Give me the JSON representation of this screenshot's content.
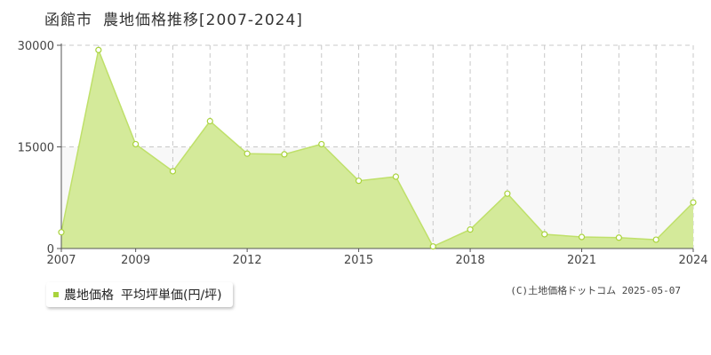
{
  "header": {
    "city": "函館市",
    "title": "農地価格推移[2007-2024]"
  },
  "legend": {
    "series_name": "農地価格",
    "metric": "平均坪単価(円/坪)"
  },
  "credit": "(C)土地価格ドットコム 2025-05-07",
  "colors": {
    "fill": "#d4ea9a",
    "line": "#bfe06a",
    "marker": "#a9d33c",
    "grid": "#c8c8c8",
    "band": "#f8f8f8"
  },
  "chart_data": {
    "type": "area",
    "x": [
      2007,
      2008,
      2009,
      2010,
      2011,
      2012,
      2013,
      2014,
      2015,
      2016,
      2017,
      2018,
      2019,
      2020,
      2021,
      2022,
      2023,
      2024
    ],
    "series": [
      {
        "name": "農地価格",
        "values": [
          2400,
          29300,
          15400,
          11400,
          18800,
          14000,
          13900,
          15400,
          10000,
          10600,
          300,
          2800,
          8100,
          2100,
          1700,
          1600,
          1300,
          6800
        ]
      }
    ],
    "y_ticks": [
      0,
      15000,
      30000
    ],
    "x_tick_labels": [
      2007,
      2009,
      2012,
      2015,
      2018,
      2021,
      2024
    ],
    "ylim": [
      0,
      30000
    ],
    "xlim": [
      2007,
      2024
    ],
    "grid": true,
    "title": "農地価格推移[2007-2024]",
    "xlabel": "",
    "ylabel": ""
  }
}
